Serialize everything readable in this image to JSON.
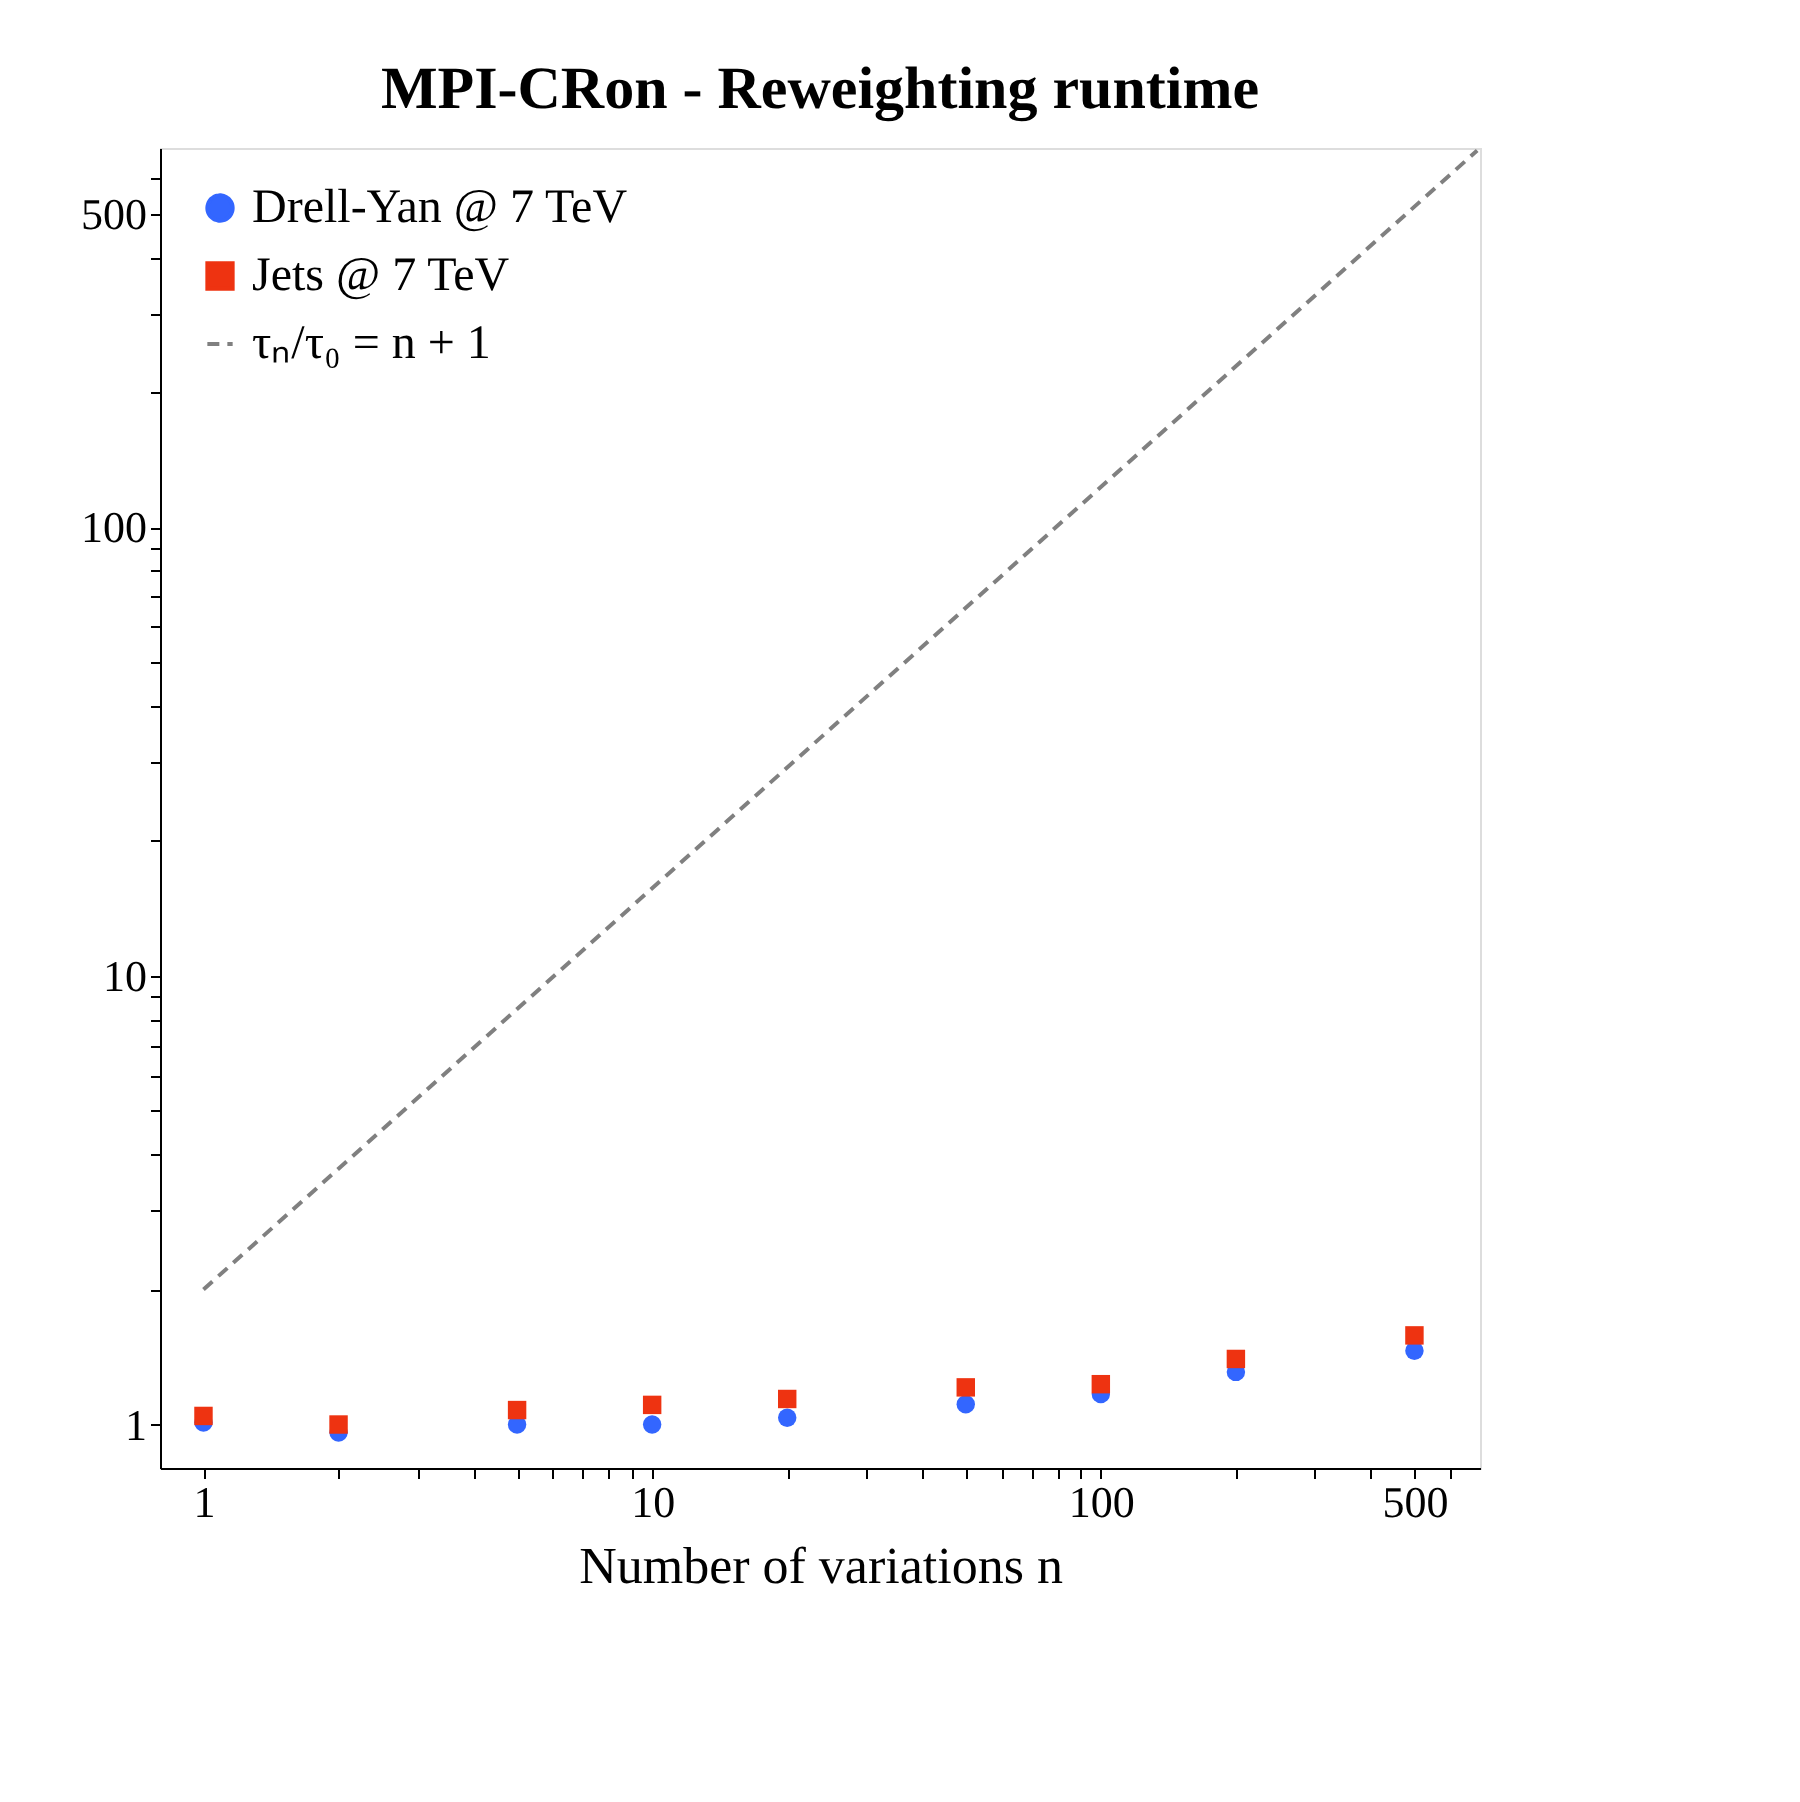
{
  "chart_data": {
    "type": "scatter",
    "title": "MPI-CRon - Reweighting runtime",
    "xlabel": "Number of variations n",
    "x": [
      1,
      2,
      5,
      10,
      20,
      50,
      100,
      200,
      500
    ],
    "series": [
      {
        "name": "Drell-Yan @ 7 TeV",
        "color": "#3366ff",
        "marker": "circle",
        "values": [
          1.01,
          0.96,
          1.0,
          1.0,
          1.035,
          1.11,
          1.17,
          1.31,
          1.46
        ]
      },
      {
        "name": "Jets @ 7 TeV",
        "color": "#ee3311",
        "marker": "square",
        "values": [
          1.045,
          1.0,
          1.077,
          1.106,
          1.14,
          1.21,
          1.23,
          1.4,
          1.58
        ]
      },
      {
        "name": "τₙ/τ₀ = n + 1",
        "type": "line",
        "color": "#808080",
        "line_style": "dashed",
        "x": [
          1,
          690
        ],
        "values": [
          2,
          691
        ]
      }
    ],
    "log": "xy",
    "xlim": [
      0.8,
      700
    ],
    "ylim": [
      0.8,
      700
    ],
    "xticks": [
      1,
      {
        "value": 2,
        "label": null
      },
      {
        "value": 3,
        "label": null
      },
      {
        "value": 4,
        "label": null
      },
      {
        "value": 5,
        "label": null
      },
      {
        "value": 6,
        "label": null
      },
      {
        "value": 7,
        "label": null
      },
      {
        "value": 8,
        "label": null
      },
      {
        "value": 9,
        "label": null
      },
      10,
      {
        "value": 20,
        "label": null
      },
      {
        "value": 30,
        "label": null
      },
      {
        "value": 40,
        "label": null
      },
      {
        "value": 50,
        "label": null
      },
      {
        "value": 60,
        "label": null
      },
      {
        "value": 70,
        "label": null
      },
      {
        "value": 80,
        "label": null
      },
      {
        "value": 90,
        "label": null
      },
      100,
      {
        "value": 200,
        "label": null
      },
      {
        "value": 300,
        "label": null
      },
      {
        "value": 400,
        "label": null
      },
      500,
      {
        "value": 600,
        "label": null
      }
    ],
    "yticks": [
      1,
      {
        "value": 2,
        "label": null
      },
      {
        "value": 3,
        "label": null
      },
      {
        "value": 4,
        "label": null
      },
      {
        "value": 5,
        "label": null
      },
      {
        "value": 6,
        "label": null
      },
      {
        "value": 7,
        "label": null
      },
      {
        "value": 8,
        "label": null
      },
      {
        "value": 9,
        "label": null
      },
      10,
      {
        "value": 20,
        "label": null
      },
      {
        "value": 30,
        "label": null
      },
      {
        "value": 40,
        "label": null
      },
      {
        "value": 50,
        "label": null
      },
      {
        "value": 60,
        "label": null
      },
      {
        "value": 70,
        "label": null
      },
      {
        "value": 80,
        "label": null
      },
      {
        "value": 90,
        "label": null
      },
      100,
      {
        "value": 200,
        "label": null
      },
      {
        "value": 300,
        "label": null
      },
      {
        "value": 400,
        "label": null
      },
      500,
      {
        "value": 600,
        "label": null
      }
    ],
    "grid": false,
    "legend": "top left"
  }
}
